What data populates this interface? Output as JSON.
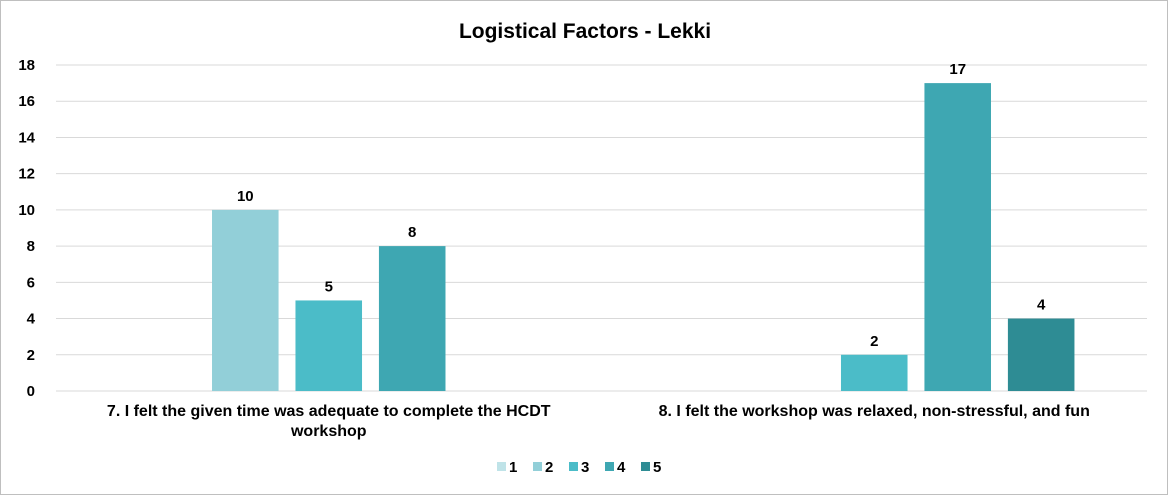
{
  "chart_data": {
    "type": "bar",
    "title": "Logistical Factors - Lekki",
    "categories": [
      [
        "7. I felt the given time was adequate to complete the HCDT",
        "workshop"
      ],
      [
        "8. I felt the workshop was relaxed, non-stressful, and fun"
      ]
    ],
    "series": [
      {
        "name": "1",
        "color": "#bfe3e8",
        "values": [
          0,
          0
        ]
      },
      {
        "name": "2",
        "color": "#92cfd8",
        "values": [
          10,
          0
        ]
      },
      {
        "name": "3",
        "color": "#4bbcc8",
        "values": [
          5,
          2
        ]
      },
      {
        "name": "4",
        "color": "#3ea7b2",
        "values": [
          8,
          17
        ]
      },
      {
        "name": "5",
        "color": "#2e8c94",
        "values": [
          0,
          4
        ]
      }
    ],
    "y_ticks": [
      "0",
      "2",
      "4",
      "6",
      "8",
      "10",
      "12",
      "14",
      "16",
      "18"
    ],
    "ylim": [
      0,
      18
    ],
    "grid": true,
    "legend_position": "bottom"
  }
}
